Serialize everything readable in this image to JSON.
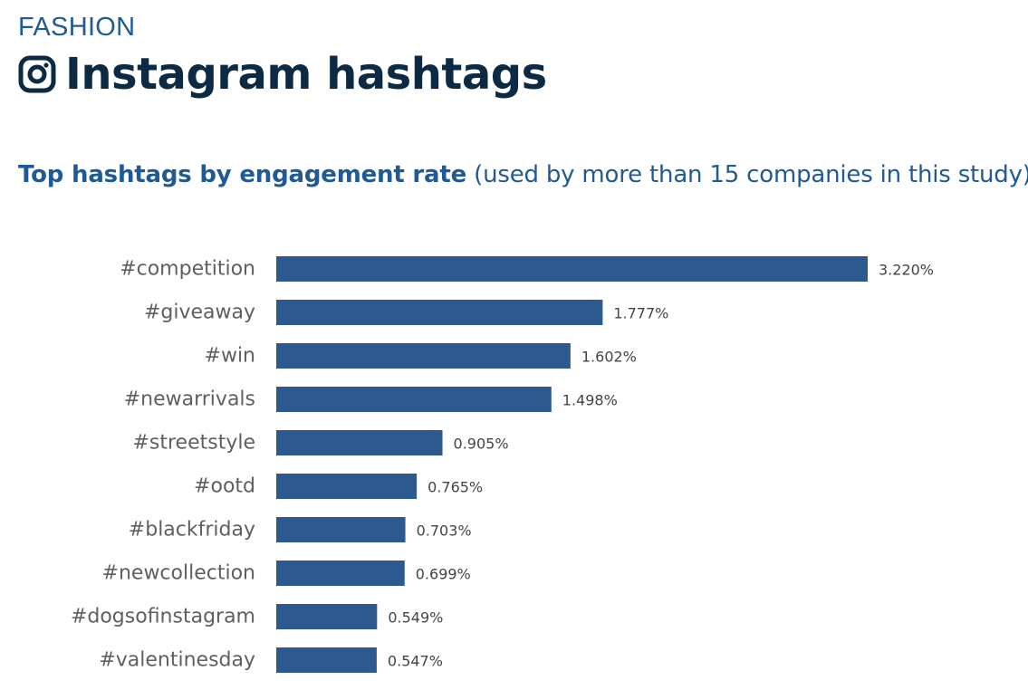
{
  "header": {
    "category": "FASHION",
    "title": "Instagram hashtags",
    "icon": "instagram-icon"
  },
  "subtitle": {
    "bold": "Top hashtags by engagement rate",
    "rest": "(used by more than 15 companies in this study)"
  },
  "colors": {
    "bar": "#2d5a8e",
    "title": "#0c2a44",
    "accent": "#1f5a96"
  },
  "chart_data": {
    "type": "bar",
    "orientation": "horizontal",
    "title": "Top hashtags by engagement rate (used by more than 15 companies in this study)",
    "xlabel": "",
    "ylabel": "",
    "xlim": [
      0,
      3.22
    ],
    "grid": false,
    "categories": [
      "#competition",
      "#giveaway",
      "#win",
      "#newarrivals",
      "#streetstyle",
      "#ootd",
      "#blackfriday",
      "#newcollection",
      "#dogsofinstagram",
      "#valentinesday"
    ],
    "values": [
      3.22,
      1.777,
      1.602,
      1.498,
      0.905,
      0.765,
      0.703,
      0.699,
      0.549,
      0.547
    ],
    "value_labels": [
      "3.220%",
      "1.777%",
      "1.602%",
      "1.498%",
      "0.905%",
      "0.765%",
      "0.703%",
      "0.699%",
      "0.549%",
      "0.547%"
    ]
  }
}
